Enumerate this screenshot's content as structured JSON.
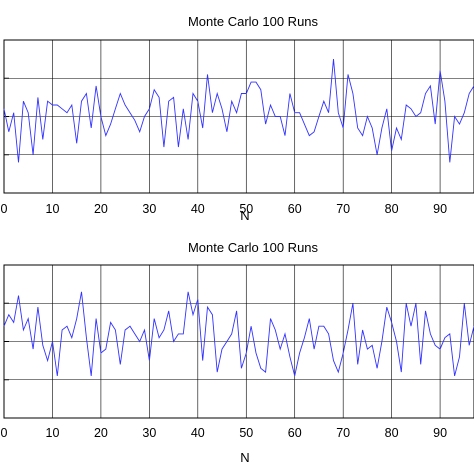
{
  "chart_data": [
    {
      "type": "line",
      "title": "Monte Carlo 100 Runs",
      "xlabel": "N",
      "ylabel": "",
      "xlim": [
        0,
        97
      ],
      "ylim": [
        -2,
        2
      ],
      "grid": true,
      "x_tick_labels": [
        "0",
        "10",
        "20",
        "30",
        "40",
        "50",
        "60",
        "70",
        "80",
        "90"
      ],
      "x_tick_values": [
        0,
        10,
        20,
        30,
        40,
        50,
        60,
        70,
        80,
        90
      ],
      "series": [
        {
          "color": "#3333ff",
          "x": [
            0,
            1,
            2,
            3,
            4,
            5,
            6,
            7,
            8,
            9,
            10,
            11,
            12,
            13,
            14,
            15,
            16,
            17,
            18,
            19,
            20,
            21,
            22,
            23,
            24,
            25,
            26,
            27,
            28,
            29,
            30,
            31,
            32,
            33,
            34,
            35,
            36,
            37,
            38,
            39,
            40,
            41,
            42,
            43,
            44,
            45,
            46,
            47,
            48,
            49,
            50,
            51,
            52,
            53,
            54,
            55,
            56,
            57,
            58,
            59,
            60,
            61,
            62,
            63,
            64,
            65,
            66,
            67,
            68,
            69,
            70,
            71,
            72,
            73,
            74,
            75,
            76,
            77,
            78,
            79,
            80,
            81,
            82,
            83,
            84,
            85,
            86,
            87,
            88,
            89,
            90,
            91,
            92,
            93,
            94,
            95,
            96,
            97
          ],
          "values": [
            0.2,
            -0.4,
            0.1,
            -1.2,
            0.4,
            0.1,
            -1.0,
            0.5,
            -0.6,
            0.4,
            0.3,
            0.3,
            0.2,
            0.1,
            0.3,
            -0.7,
            0.4,
            0.6,
            -0.3,
            0.8,
            0.0,
            -0.5,
            -0.2,
            0.2,
            0.6,
            0.3,
            0.1,
            -0.1,
            -0.4,
            0.0,
            0.2,
            0.7,
            0.5,
            -0.8,
            0.4,
            0.5,
            -0.8,
            0.2,
            -0.6,
            0.6,
            0.4,
            -0.3,
            1.1,
            0.1,
            0.6,
            0.2,
            -0.4,
            0.4,
            0.1,
            0.6,
            0.6,
            0.9,
            0.9,
            0.7,
            -0.2,
            0.3,
            0.0,
            0.0,
            -0.5,
            0.6,
            0.1,
            0.1,
            -0.2,
            -0.5,
            -0.4,
            0.0,
            0.4,
            0.1,
            1.5,
            0.1,
            -0.3,
            1.1,
            0.6,
            -0.3,
            -0.5,
            0.0,
            -0.3,
            -1.0,
            -0.3,
            0.2,
            -0.9,
            -0.3,
            -0.6,
            0.3,
            0.2,
            0.0,
            0.1,
            0.6,
            0.8,
            -0.2,
            1.2,
            0.4,
            -1.2,
            0.0,
            -0.2,
            0.1,
            0.6,
            0.8
          ]
        }
      ]
    },
    {
      "type": "line",
      "title": "Monte Carlo 100 Runs",
      "xlabel": "N",
      "ylabel": "",
      "xlim": [
        0,
        97
      ],
      "ylim": [
        -2,
        2
      ],
      "grid": true,
      "x_tick_labels": [
        "0",
        "10",
        "20",
        "30",
        "40",
        "50",
        "60",
        "70",
        "80",
        "90"
      ],
      "x_tick_values": [
        0,
        10,
        20,
        30,
        40,
        50,
        60,
        70,
        80,
        90
      ],
      "series": [
        {
          "color": "#3333ff",
          "x": [
            0,
            1,
            2,
            3,
            4,
            5,
            6,
            7,
            8,
            9,
            10,
            11,
            12,
            13,
            14,
            15,
            16,
            17,
            18,
            19,
            20,
            21,
            22,
            23,
            24,
            25,
            26,
            27,
            28,
            29,
            30,
            31,
            32,
            33,
            34,
            35,
            36,
            37,
            38,
            39,
            40,
            41,
            42,
            43,
            44,
            45,
            46,
            47,
            48,
            49,
            50,
            51,
            52,
            53,
            54,
            55,
            56,
            57,
            58,
            59,
            60,
            61,
            62,
            63,
            64,
            65,
            66,
            67,
            68,
            69,
            70,
            71,
            72,
            73,
            74,
            75,
            76,
            77,
            78,
            79,
            80,
            81,
            82,
            83,
            84,
            85,
            86,
            87,
            88,
            89,
            90,
            91,
            92,
            93,
            94,
            95,
            96,
            97
          ],
          "values": [
            0.4,
            0.7,
            0.5,
            1.2,
            0.3,
            0.6,
            -0.2,
            0.9,
            -0.1,
            -0.5,
            0.0,
            -0.9,
            0.3,
            0.4,
            0.1,
            0.6,
            1.3,
            0.1,
            -0.9,
            0.6,
            -0.3,
            -0.2,
            0.5,
            0.3,
            -0.6,
            0.3,
            0.4,
            0.2,
            0.0,
            0.3,
            -0.5,
            0.6,
            0.1,
            0.3,
            0.8,
            0.0,
            0.2,
            0.2,
            1.3,
            0.7,
            1.1,
            -0.5,
            0.9,
            0.7,
            -0.8,
            -0.2,
            0.0,
            0.2,
            0.8,
            -0.7,
            -0.3,
            0.4,
            -0.3,
            -0.7,
            -0.8,
            0.6,
            0.3,
            -0.2,
            0.2,
            -0.4,
            -0.9,
            -0.3,
            0.1,
            0.6,
            -0.2,
            0.4,
            0.4,
            0.2,
            -0.5,
            -0.8,
            -0.3,
            0.3,
            1.0,
            -0.6,
            0.3,
            -0.2,
            -0.1,
            -0.7,
            0.0,
            0.9,
            0.5,
            0.0,
            -0.8,
            1.0,
            0.4,
            1.0,
            -0.6,
            0.8,
            0.2,
            -0.1,
            -0.2,
            0.1,
            0.2,
            -0.9,
            -0.4,
            1.0,
            -0.1,
            0.4
          ]
        }
      ]
    }
  ]
}
